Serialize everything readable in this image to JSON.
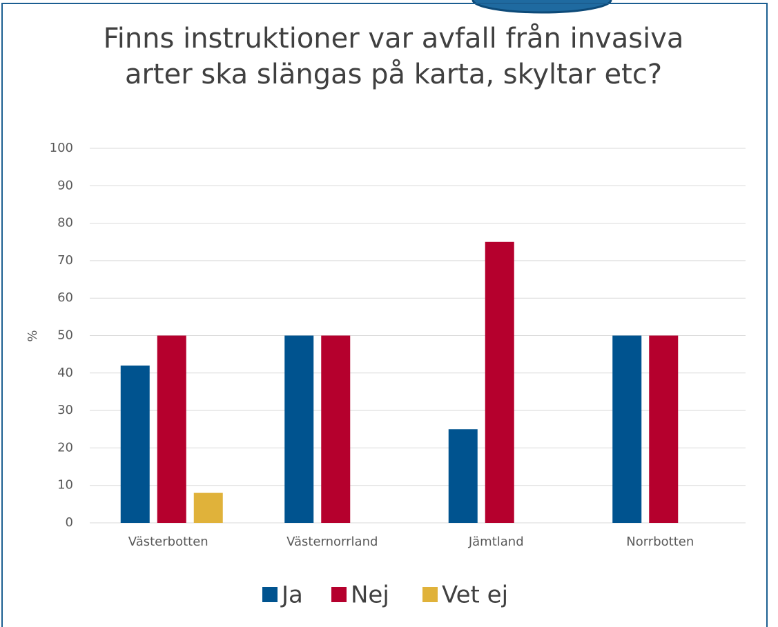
{
  "chart_data": {
    "type": "bar",
    "title": "Finns instruktioner var avfall från invasiva arter ska slängas på karta, skyltar etc?",
    "y_label": "%",
    "categories": [
      "Västerbotten",
      "Västernorrland",
      "Jämtland",
      "Norrbotten"
    ],
    "series": [
      {
        "name": "Ja",
        "color": "#00538f",
        "values": [
          42,
          50,
          25,
          50
        ]
      },
      {
        "name": "Nej",
        "color": "#b5002d",
        "values": [
          50,
          50,
          75,
          50
        ]
      },
      {
        "name": "Vet ej",
        "color": "#e0b23a",
        "values": [
          8,
          0,
          0,
          0
        ]
      }
    ],
    "ylim": [
      0,
      100
    ],
    "yticks": [
      0,
      10,
      20,
      30,
      40,
      50,
      60,
      70,
      80,
      90,
      100
    ],
    "grid": true,
    "legend": "bottom"
  }
}
